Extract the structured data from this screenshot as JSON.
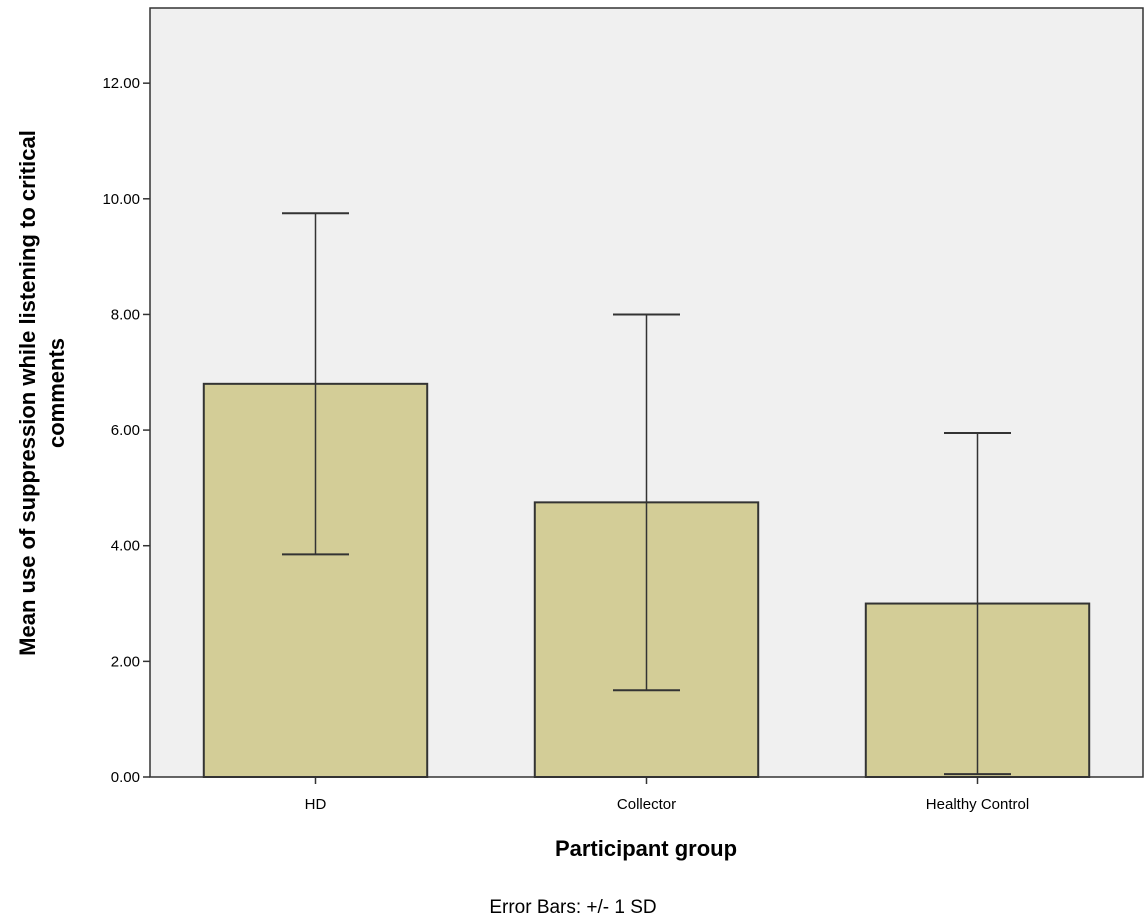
{
  "chart_data": {
    "type": "bar",
    "categories": [
      "HD",
      "Collector",
      "Healthy Control"
    ],
    "values": [
      6.8,
      4.75,
      3.0
    ],
    "error_bars": [
      {
        "low": 3.85,
        "high": 9.75
      },
      {
        "low": 1.5,
        "high": 8.0
      },
      {
        "low": 0.05,
        "high": 5.95
      }
    ],
    "ylim": [
      0,
      13.3
    ],
    "yticks": [
      "0.00",
      "2.00",
      "4.00",
      "6.00",
      "8.00",
      "10.00",
      "12.00"
    ],
    "xlabel": "Participant group",
    "ylabel_lines": [
      "Mean use of suppression while listening to critical",
      "comments"
    ],
    "note": "Error Bars: +/- 1 SD",
    "grid": false,
    "colors": {
      "bar_fill": "#d3cd97",
      "bar_stroke": "#333333",
      "plot_background": "#f0f0f0",
      "error_bar": "#333333"
    }
  }
}
